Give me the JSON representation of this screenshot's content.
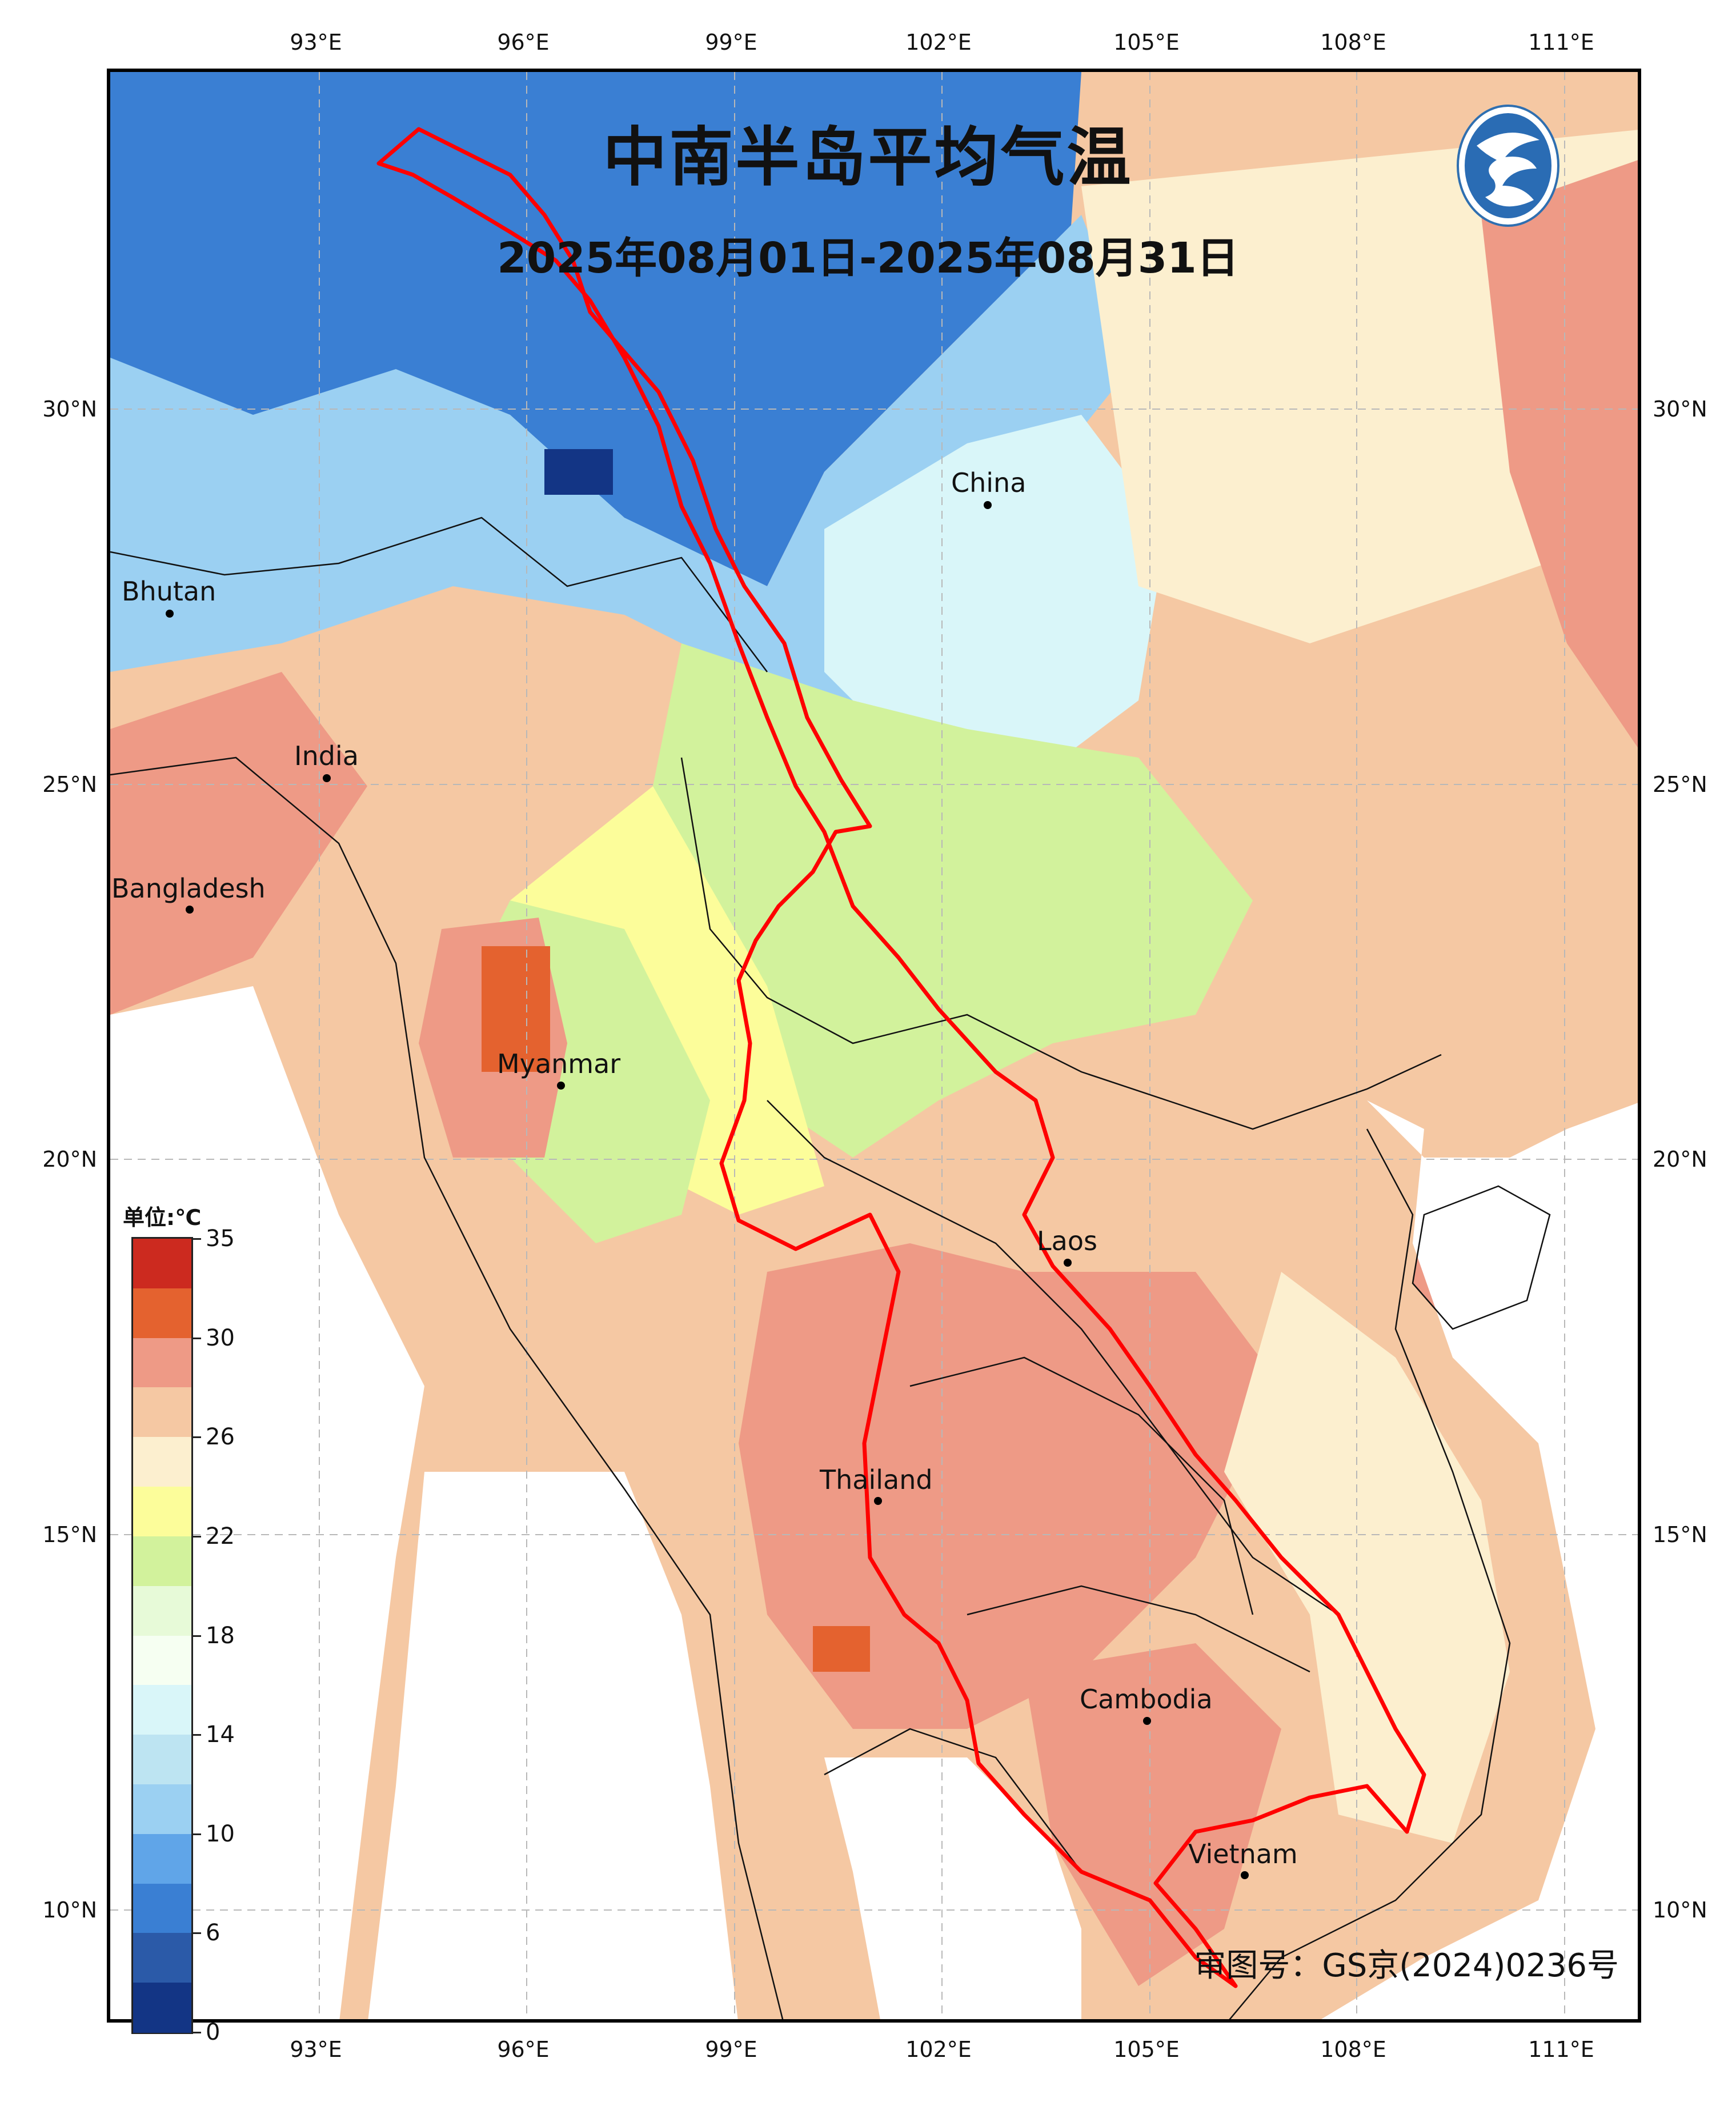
{
  "title": "中南半岛平均气温",
  "subtitle": "2025年08月01日-2025年08月31日",
  "review_number": "审图号：GS京(2024)0236号",
  "logo_icon": "weather-service-logo",
  "axes": {
    "lon_labels": [
      "93°E",
      "96°E",
      "99°E",
      "102°E",
      "105°E",
      "108°E",
      "111°E"
    ],
    "lat_labels": [
      "30°N",
      "25°N",
      "20°N",
      "15°N",
      "10°N"
    ],
    "gridlines": true
  },
  "colorbar": {
    "unit": "单位:℃",
    "labels": [
      "35",
      "30",
      "26",
      "22",
      "18",
      "14",
      "10",
      "6",
      "0"
    ],
    "colors": [
      "#cc2a1f",
      "#e4622f",
      "#ee9a86",
      "#f5c8a3",
      "#fcefcf",
      "#fcfd9a",
      "#d2f29c",
      "#e7fad8",
      "#f6fff2",
      "#d9f6f9",
      "#bde4f2",
      "#9bd0f2",
      "#60a5e8",
      "#3a7fd3",
      "#2b5aa8",
      "#133585"
    ]
  },
  "places": [
    {
      "name": "China"
    },
    {
      "name": "Bhutan"
    },
    {
      "name": "India"
    },
    {
      "name": "Bangladesh"
    },
    {
      "name": "Myanmar"
    },
    {
      "name": "Laos"
    },
    {
      "name": "Thailand"
    },
    {
      "name": "Cambodia"
    },
    {
      "name": "Vietnam"
    }
  ],
  "basin_outline_color": "#ff0000",
  "map_colors": {
    "cold": "#3a7fd3",
    "cool": "#9bd0f2",
    "mild": "#d9f6f9",
    "green": "#d2f29c",
    "yellow": "#fcfd9a",
    "cream": "#fcefcf",
    "tan": "#f5c8a3",
    "salmon": "#ee9a86",
    "hot": "#e4622f"
  }
}
